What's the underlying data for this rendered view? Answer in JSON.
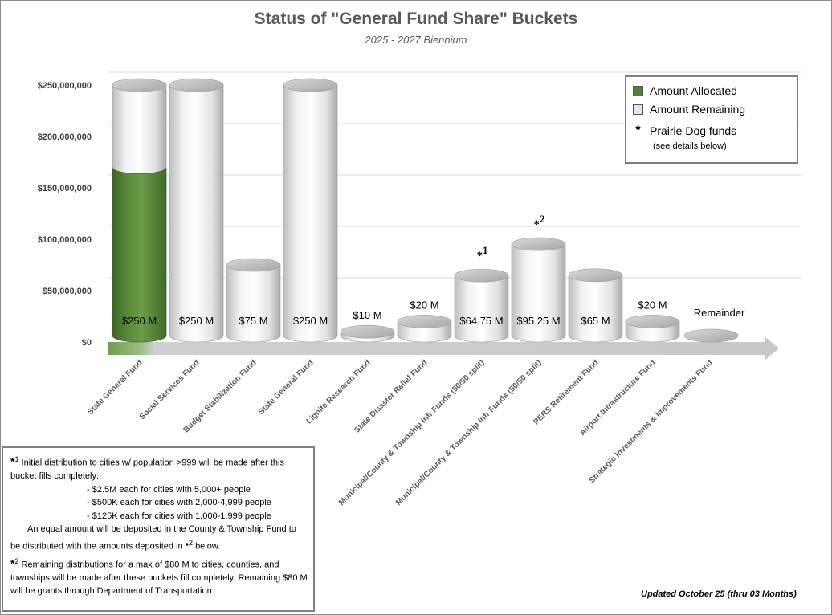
{
  "chart_data": {
    "type": "bar",
    "title": "Status of \"General Fund Share\" Buckets",
    "subtitle": "2025 - 2027 Biennium",
    "ylim": [
      0,
      250000000
    ],
    "yticks": [
      "$0",
      "$50,000,000",
      "$100,000,000",
      "$150,000,000",
      "$200,000,000",
      "$250,000,000"
    ],
    "categories": [
      "State General Fund",
      "Social Services Fund",
      "Budget Stabilization Fund",
      "State General Fund",
      "Lignite Research Fund",
      "State Disaster Relief Fund",
      "Municipal/County & Township Infr Funds (50/50 split)",
      "Municipal/County & Township Infr Funds (50/50 split)",
      "PERS Retirement Fund",
      "Airport Infrastructure Fund",
      "Strategic Investments & Improvements Fund"
    ],
    "series": [
      {
        "name": "Amount Allocated",
        "color": "#548235",
        "values": [
          170000000,
          0,
          0,
          0,
          0,
          0,
          0,
          0,
          0,
          0,
          0
        ]
      },
      {
        "name": "Amount Remaining",
        "color": "#e6e6e6",
        "values": [
          80000000,
          250000000,
          75000000,
          250000000,
          10000000,
          20000000,
          64750000,
          95250000,
          65000000,
          20000000,
          0
        ]
      }
    ],
    "bar_labels": [
      "$250 M",
      "$250 M",
      "$75 M",
      "$250 M",
      "$10 M",
      "$20 M",
      "$64.75 M",
      "$95.25 M",
      "$65 M",
      "$20 M",
      "Remainder"
    ],
    "bar_markers": [
      "",
      "",
      "",
      "",
      "",
      "",
      "*1",
      "*2",
      "",
      "",
      ""
    ],
    "grid": true,
    "legend_position": "top-right"
  },
  "legend": {
    "allocated": "Amount Allocated",
    "remaining": "Amount Remaining",
    "prairie": "Prairie Dog funds",
    "prairie_note": "(see details below)",
    "allocated_color": "#548235",
    "remaining_color": "#e6e6e6"
  },
  "notes": {
    "n1_sup": "1",
    "n1_text": "Initial distribution to cities w/ population >999 will be made after this bucket fills completely:",
    "n1_items": [
      "- $2.5M each for cities with 5,000+ people",
      "- $500K each for cities with 2,000-4,999 people",
      "- $125K each for cities with 1,000-1,999 people"
    ],
    "n1_para_a": "An equal amount will be deposited in the County & Township Fund to be distributed with the amounts deposited in",
    "n1_para_ref": "2",
    "n1_para_b": "below.",
    "n2_sup": "2",
    "n2_text": "Remaining distributions for a max of $80 M to cities, counties, and townships will be made after these buckets fill completely. Remaining $80 M will be grants through Department of Transportation."
  },
  "updated": "Updated October 25 (thru 03 Months)"
}
